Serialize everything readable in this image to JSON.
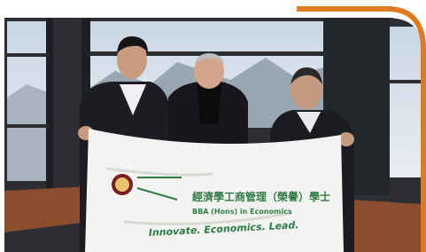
{
  "banner": {
    "title_zh": "經濟學工商管理（榮譽）學士",
    "title_en": "BBA (Hons) in Economics",
    "slogan": "Innovate. Economics. Lead."
  }
}
